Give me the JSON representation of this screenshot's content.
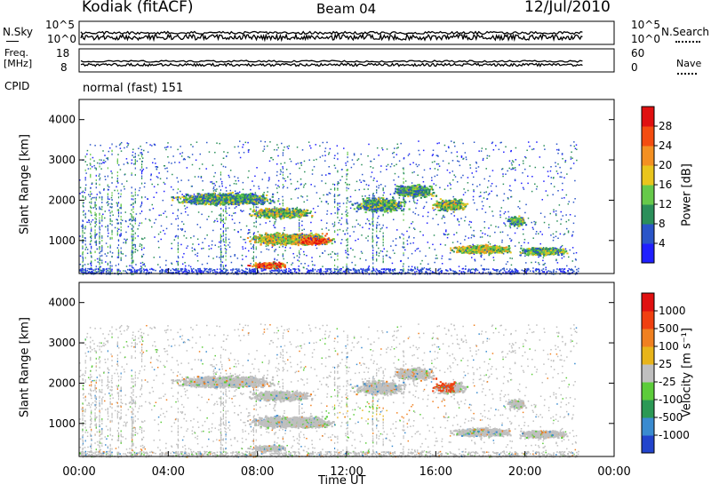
{
  "header": {
    "station": "Kodiak (fitACF)",
    "beam": "Beam 04",
    "date": "12/Jul/2010"
  },
  "strip_labels": {
    "nsky": "N.Sky",
    "nsky_ticks": [
      "10^5",
      "10^0"
    ],
    "nsearch": "N.Search",
    "nsearch_ticks": [
      "10^5",
      "10^0"
    ],
    "freq": "Freq.",
    "freq_unit": "[MHz]",
    "freq_ticks": [
      "18",
      "8"
    ],
    "nave": "Nave",
    "nave_ticks": [
      "60",
      "0"
    ],
    "cpid": "CPID",
    "cpid_value": "normal (fast) 151"
  },
  "chart_data": [
    {
      "type": "heatmap",
      "name": "power-panel",
      "ylabel": "Slant Range [km]",
      "yticks": [
        "1000",
        "2000",
        "3000",
        "4000"
      ],
      "ylim": [
        180,
        4500
      ],
      "colorbar": {
        "label": "Power [dB]",
        "ticks": [
          "4",
          "8",
          "12",
          "16",
          "20",
          "24",
          "28"
        ],
        "colors": [
          "#1f1fff",
          "#2a55c8",
          "#2b8f5a",
          "#66c94a",
          "#e9c51d",
          "#f49022",
          "#f44c10",
          "#e01010"
        ]
      }
    },
    {
      "type": "heatmap",
      "name": "velocity-panel",
      "xlabel": "Time UT",
      "xticks": [
        "00:00",
        "04:00",
        "08:00",
        "12:00",
        "16:00",
        "20:00",
        "00:00"
      ],
      "ylabel": "Slant Range [km]",
      "yticks": [
        "1000",
        "2000",
        "3000",
        "4000"
      ],
      "ylim": [
        180,
        4500
      ],
      "colorbar": {
        "label": "Velocity [m s⁻¹]",
        "ticks": [
          "1000",
          "500",
          "100",
          "25",
          "-25",
          "-100",
          "-500",
          "-1000"
        ],
        "colors": [
          "#2244cc",
          "#3a8bd0",
          "#2b9955",
          "#5ccc3a",
          "#bfbfbf",
          "#e8b41a",
          "#f08020",
          "#f04010",
          "#e01010"
        ]
      }
    }
  ]
}
